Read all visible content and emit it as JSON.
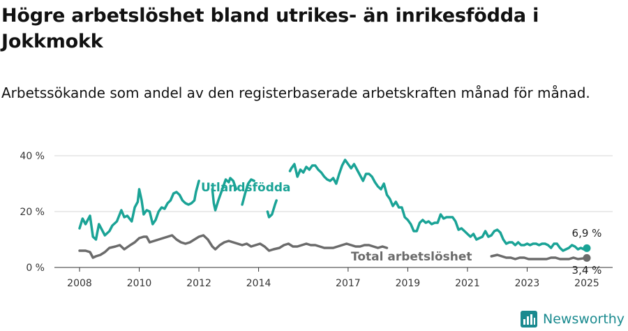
{
  "title": "Högre arbetslöshet bland utrikes- än inrikesfödda i Jokkmokk",
  "subtitle": "Arbetssökande som andel av den registerbaserade arbetskraften månad för månad.",
  "brand": "Newsworthy",
  "colors": {
    "foreign": "#1aa396",
    "total": "#6b6b6b",
    "grid": "#d4d4d4",
    "brand": "#1a8a8f"
  },
  "chart_data": {
    "type": "line",
    "title": "Högre arbetslöshet bland utrikes- än inrikesfödda i Jokkmokk",
    "subtitle": "Arbetssökande som andel av den registerbaserade arbetskraften månad för månad.",
    "xlabel": "",
    "ylabel": "",
    "xlim": [
      2008,
      2025
    ],
    "ylim": [
      0,
      40
    ],
    "y_ticks": [
      {
        "value": 0,
        "label": "0 %"
      },
      {
        "value": 20,
        "label": "20 %"
      },
      {
        "value": 40,
        "label": "40 %"
      }
    ],
    "x_ticks": [
      2008,
      2010,
      2012,
      2014,
      2017,
      2019,
      2021,
      2023,
      2025
    ],
    "grid": "horizontal",
    "series": [
      {
        "name": "Utlandsfödda",
        "color": "#1aa396",
        "end_label": "6,9 %",
        "segments": [
          [
            [
              2008.0,
              14
            ],
            [
              2008.1,
              17.5
            ],
            [
              2008.2,
              15.5
            ],
            [
              2008.35,
              18.5
            ],
            [
              2008.45,
              11
            ],
            [
              2008.55,
              10
            ],
            [
              2008.65,
              15.5
            ],
            [
              2008.85,
              11.5
            ],
            [
              2009.0,
              13
            ],
            [
              2009.1,
              15
            ],
            [
              2009.25,
              16.5
            ],
            [
              2009.4,
              20.5
            ],
            [
              2009.5,
              18
            ],
            [
              2009.6,
              18.5
            ],
            [
              2009.75,
              16.5
            ],
            [
              2009.85,
              21.5
            ],
            [
              2009.95,
              23.5
            ],
            [
              2010.0,
              28
            ],
            [
              2010.08,
              24
            ],
            [
              2010.15,
              19
            ],
            [
              2010.25,
              20.5
            ],
            [
              2010.35,
              20
            ],
            [
              2010.45,
              15.5
            ],
            [
              2010.55,
              17
            ],
            [
              2010.65,
              20
            ],
            [
              2010.75,
              21.5
            ],
            [
              2010.85,
              21
            ],
            [
              2010.95,
              23
            ],
            [
              2011.05,
              24
            ],
            [
              2011.15,
              26.5
            ],
            [
              2011.25,
              27
            ],
            [
              2011.35,
              26
            ],
            [
              2011.45,
              24
            ],
            [
              2011.55,
              23
            ],
            [
              2011.65,
              22.5
            ],
            [
              2011.75,
              23
            ],
            [
              2011.85,
              24
            ],
            [
              2011.9,
              27
            ],
            [
              2012.0,
              31
            ]
          ],
          [
            [
              2012.45,
              28
            ],
            [
              2012.5,
              23
            ],
            [
              2012.55,
              20.5
            ],
            [
              2012.65,
              24
            ],
            [
              2012.8,
              28.5
            ],
            [
              2012.9,
              31.5
            ],
            [
              2013.0,
              30.5
            ],
            [
              2013.05,
              32
            ],
            [
              2013.15,
              31
            ],
            [
              2013.25,
              28
            ]
          ],
          [
            [
              2013.45,
              22.5
            ],
            [
              2013.55,
              26.5
            ],
            [
              2013.65,
              30
            ],
            [
              2013.75,
              31.5
            ],
            [
              2013.85,
              31
            ]
          ],
          [
            [
              2014.3,
              20
            ],
            [
              2014.35,
              18
            ],
            [
              2014.45,
              19
            ],
            [
              2014.55,
              22.5
            ],
            [
              2014.6,
              24
            ]
          ],
          [
            [
              2015.05,
              34.5
            ],
            [
              2015.1,
              35.5
            ],
            [
              2015.2,
              37
            ],
            [
              2015.3,
              32.5
            ],
            [
              2015.4,
              35
            ],
            [
              2015.5,
              34
            ],
            [
              2015.6,
              36
            ],
            [
              2015.7,
              35
            ],
            [
              2015.8,
              36.5
            ],
            [
              2015.9,
              36.5
            ],
            [
              2016.0,
              35
            ],
            [
              2016.1,
              34
            ],
            [
              2016.2,
              32.5
            ],
            [
              2016.3,
              31.5
            ],
            [
              2016.4,
              31
            ],
            [
              2016.5,
              32
            ],
            [
              2016.6,
              30
            ],
            [
              2016.7,
              33.5
            ],
            [
              2016.8,
              36.5
            ],
            [
              2016.9,
              38.5
            ],
            [
              2017.0,
              37
            ],
            [
              2017.1,
              35.5
            ],
            [
              2017.2,
              37
            ],
            [
              2017.3,
              35
            ],
            [
              2017.4,
              33
            ],
            [
              2017.5,
              31
            ],
            [
              2017.6,
              33.5
            ],
            [
              2017.7,
              33.5
            ],
            [
              2017.8,
              32.5
            ],
            [
              2017.9,
              30.5
            ],
            [
              2018.0,
              29
            ],
            [
              2018.1,
              28
            ],
            [
              2018.2,
              30
            ],
            [
              2018.3,
              26
            ],
            [
              2018.4,
              24.5
            ],
            [
              2018.5,
              22
            ],
            [
              2018.6,
              23.5
            ],
            [
              2018.7,
              21.5
            ],
            [
              2018.8,
              21.5
            ],
            [
              2018.9,
              18
            ],
            [
              2019.0,
              17
            ],
            [
              2019.1,
              15.5
            ],
            [
              2019.2,
              13
            ],
            [
              2019.3,
              13
            ],
            [
              2019.4,
              16
            ],
            [
              2019.5,
              17
            ],
            [
              2019.6,
              16
            ],
            [
              2019.7,
              16.5
            ],
            [
              2019.8,
              15.5
            ],
            [
              2019.9,
              16
            ],
            [
              2020.0,
              16
            ],
            [
              2020.1,
              19
            ],
            [
              2020.2,
              17.5
            ],
            [
              2020.3,
              18
            ],
            [
              2020.4,
              18
            ],
            [
              2020.5,
              18
            ],
            [
              2020.6,
              16.5
            ],
            [
              2020.7,
              13.5
            ],
            [
              2020.8,
              14
            ],
            [
              2020.9,
              13
            ],
            [
              2021.0,
              12
            ],
            [
              2021.1,
              11
            ],
            [
              2021.2,
              12
            ],
            [
              2021.3,
              10
            ],
            [
              2021.4,
              10.5
            ],
            [
              2021.5,
              11
            ],
            [
              2021.6,
              13
            ],
            [
              2021.7,
              11
            ],
            [
              2021.8,
              11.5
            ],
            [
              2021.9,
              13
            ],
            [
              2022.0,
              13.5
            ],
            [
              2022.1,
              12.5
            ],
            [
              2022.2,
              10
            ],
            [
              2022.3,
              8.5
            ],
            [
              2022.4,
              9
            ],
            [
              2022.5,
              9
            ],
            [
              2022.6,
              8
            ],
            [
              2022.7,
              9
            ],
            [
              2022.8,
              8
            ],
            [
              2022.9,
              8
            ],
            [
              2023.0,
              8.5
            ],
            [
              2023.1,
              8
            ],
            [
              2023.2,
              8.5
            ],
            [
              2023.3,
              8.5
            ],
            [
              2023.4,
              8
            ],
            [
              2023.5,
              8.5
            ],
            [
              2023.6,
              8.5
            ],
            [
              2023.7,
              8
            ],
            [
              2023.8,
              7
            ],
            [
              2023.9,
              8.5
            ],
            [
              2024.0,
              8.5
            ],
            [
              2024.1,
              7
            ],
            [
              2024.2,
              6
            ],
            [
              2024.3,
              6.5
            ],
            [
              2024.4,
              7
            ],
            [
              2024.5,
              8
            ],
            [
              2024.6,
              7.5
            ],
            [
              2024.7,
              6.5
            ],
            [
              2024.8,
              7
            ],
            [
              2024.9,
              6.5
            ],
            [
              2025.0,
              6.9
            ]
          ]
        ]
      },
      {
        "name": "Total arbetslöshet",
        "color": "#6b6b6b",
        "end_label": "3,4 %",
        "segments": [
          [
            [
              2008.0,
              6
            ],
            [
              2008.2,
              6
            ],
            [
              2008.35,
              5.5
            ],
            [
              2008.45,
              3.5
            ],
            [
              2008.55,
              4
            ],
            [
              2008.7,
              4.5
            ],
            [
              2008.85,
              5.5
            ],
            [
              2009.0,
              7
            ],
            [
              2009.2,
              7.5
            ],
            [
              2009.35,
              8
            ],
            [
              2009.5,
              6.5
            ],
            [
              2009.7,
              8
            ],
            [
              2009.85,
              9
            ],
            [
              2010.0,
              10.5
            ],
            [
              2010.15,
              11
            ],
            [
              2010.25,
              11
            ],
            [
              2010.35,
              9
            ],
            [
              2010.5,
              9.5
            ],
            [
              2010.65,
              10
            ],
            [
              2010.8,
              10.5
            ],
            [
              2010.95,
              11
            ],
            [
              2011.1,
              11.5
            ],
            [
              2011.25,
              10
            ],
            [
              2011.4,
              9
            ],
            [
              2011.55,
              8.5
            ],
            [
              2011.7,
              9
            ],
            [
              2011.85,
              10
            ],
            [
              2012.0,
              11
            ],
            [
              2012.15,
              11.5
            ],
            [
              2012.3,
              10
            ],
            [
              2012.45,
              7.5
            ],
            [
              2012.55,
              6.5
            ],
            [
              2012.7,
              8
            ],
            [
              2012.85,
              9
            ],
            [
              2013.0,
              9.5
            ],
            [
              2013.15,
              9
            ],
            [
              2013.3,
              8.5
            ],
            [
              2013.45,
              8
            ],
            [
              2013.6,
              8.5
            ],
            [
              2013.75,
              7.5
            ],
            [
              2013.9,
              8
            ],
            [
              2014.05,
              8.5
            ],
            [
              2014.2,
              7.5
            ],
            [
              2014.35,
              6
            ],
            [
              2014.5,
              6.5
            ],
            [
              2014.7,
              7
            ],
            [
              2014.85,
              8
            ],
            [
              2015.0,
              8.5
            ],
            [
              2015.15,
              7.5
            ],
            [
              2015.3,
              7.5
            ],
            [
              2015.45,
              8
            ],
            [
              2015.6,
              8.5
            ],
            [
              2015.75,
              8
            ],
            [
              2015.9,
              8
            ],
            [
              2016.05,
              7.5
            ],
            [
              2016.2,
              7
            ],
            [
              2016.35,
              7
            ],
            [
              2016.5,
              7
            ],
            [
              2016.65,
              7.5
            ],
            [
              2016.8,
              8
            ],
            [
              2016.95,
              8.5
            ],
            [
              2017.1,
              8
            ],
            [
              2017.25,
              7.5
            ],
            [
              2017.4,
              7.5
            ],
            [
              2017.55,
              8
            ],
            [
              2017.7,
              8
            ],
            [
              2017.85,
              7.5
            ],
            [
              2018.0,
              7
            ],
            [
              2018.15,
              7.5
            ],
            [
              2018.3,
              7
            ]
          ],
          [
            [
              2021.8,
              4
            ],
            [
              2022.0,
              4.5
            ],
            [
              2022.15,
              4
            ],
            [
              2022.3,
              3.5
            ],
            [
              2022.45,
              3.5
            ],
            [
              2022.6,
              3
            ],
            [
              2022.75,
              3.5
            ],
            [
              2022.9,
              3.5
            ],
            [
              2023.05,
              3
            ],
            [
              2023.2,
              3
            ],
            [
              2023.35,
              3
            ],
            [
              2023.5,
              3
            ],
            [
              2023.65,
              3
            ],
            [
              2023.8,
              3.5
            ],
            [
              2023.95,
              3.5
            ],
            [
              2024.1,
              3
            ],
            [
              2024.25,
              3
            ],
            [
              2024.4,
              3
            ],
            [
              2024.55,
              3.5
            ],
            [
              2024.7,
              3
            ],
            [
              2024.85,
              3.2
            ],
            [
              2025.0,
              3.4
            ]
          ]
        ]
      }
    ]
  }
}
